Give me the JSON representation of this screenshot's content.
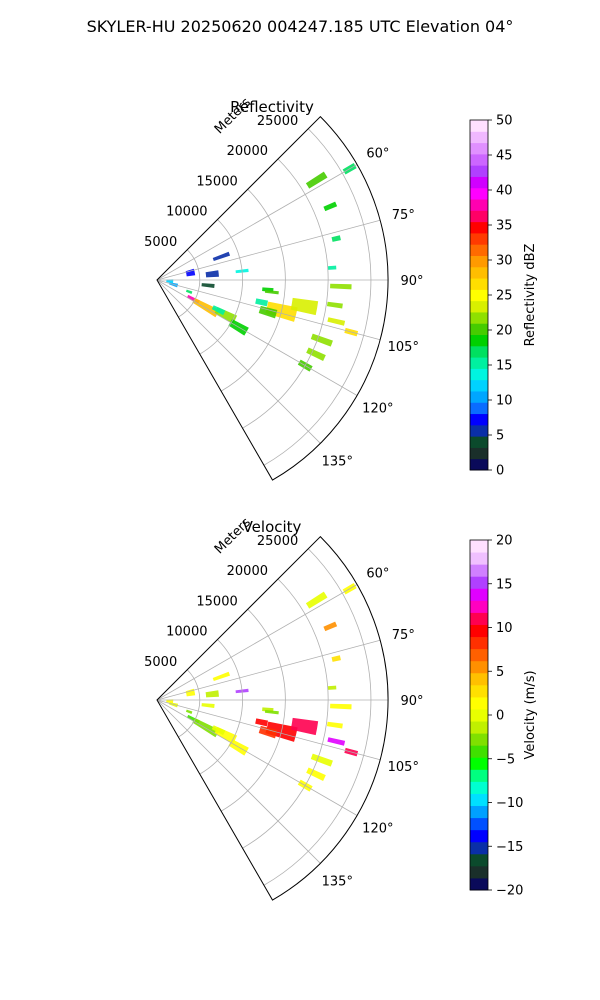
{
  "figure": {
    "suptitle": "SKYLER-HU  20250620  004247.185 UTC Elevation 04°"
  },
  "chart_data": [
    {
      "type": "heatmap",
      "title": "Reflectivity",
      "radial_axis_label": "Meters",
      "radial_ticks": [
        5000,
        10000,
        15000,
        20000,
        25000
      ],
      "radial_tick_labels": [
        "5000",
        "10000",
        "15000",
        "20000",
        "25000"
      ],
      "radial_range": [
        0,
        27000
      ],
      "azimuth_range_deg": [
        45,
        150
      ],
      "azimuth_ticks": [
        60,
        75,
        90,
        105,
        120,
        135
      ],
      "azimuth_tick_labels": [
        "60°",
        "75°",
        "90°",
        "105°",
        "120°",
        "135°"
      ],
      "grid": true,
      "colorbar": {
        "label": "Reflectivity dBZ",
        "range": [
          0,
          50
        ],
        "ticks": [
          0,
          5,
          10,
          15,
          20,
          25,
          30,
          35,
          40,
          45,
          50
        ],
        "tick_labels": [
          "0",
          "5",
          "10",
          "15",
          "20",
          "25",
          "30",
          "35",
          "40",
          "45",
          "50"
        ],
        "colormap": "pyart_NWSRef"
      },
      "echoes": [
        {
          "az": 118,
          "r": 4800,
          "w": 5,
          "l": 1500,
          "v": 38
        },
        {
          "az": 119,
          "r": 6500,
          "w": 7,
          "l": 3200,
          "v": 28
        },
        {
          "az": 117,
          "r": 9000,
          "w": 6,
          "l": 2500,
          "v": 22
        },
        {
          "az": 120,
          "r": 11000,
          "w": 5,
          "l": 2200,
          "v": 19
        },
        {
          "az": 116,
          "r": 8000,
          "w": 4,
          "l": 1500,
          "v": 16
        },
        {
          "az": 104,
          "r": 15000,
          "w": 6,
          "l": 3500,
          "v": 27
        },
        {
          "az": 100,
          "r": 17500,
          "w": 5,
          "l": 3000,
          "v": 24
        },
        {
          "az": 106,
          "r": 13500,
          "w": 4,
          "l": 2000,
          "v": 20
        },
        {
          "az": 102,
          "r": 12500,
          "w": 3,
          "l": 1400,
          "v": 15
        },
        {
          "az": 95,
          "r": 13000,
          "w": 2,
          "l": 1300,
          "v": 18
        },
        {
          "az": 84,
          "r": 10000,
          "w": 2,
          "l": 1500,
          "v": 13
        },
        {
          "az": 98,
          "r": 21000,
          "w": 1.5,
          "l": 1800,
          "v": 22
        },
        {
          "az": 103,
          "r": 21500,
          "w": 1.5,
          "l": 2000,
          "v": 24
        },
        {
          "az": 105,
          "r": 23500,
          "w": 1.5,
          "l": 1500,
          "v": 26
        },
        {
          "az": 110,
          "r": 20500,
          "w": 2,
          "l": 2500,
          "v": 21
        },
        {
          "az": 115,
          "r": 20500,
          "w": 2,
          "l": 2200,
          "v": 21
        },
        {
          "az": 120,
          "r": 20000,
          "w": 2,
          "l": 1600,
          "v": 20
        },
        {
          "az": 92,
          "r": 21500,
          "w": 1.5,
          "l": 2500,
          "v": 21
        },
        {
          "az": 96,
          "r": 13500,
          "w": 1.5,
          "l": 1600,
          "v": 20
        },
        {
          "az": 58,
          "r": 22000,
          "w": 2,
          "l": 2500,
          "v": 20
        },
        {
          "az": 67,
          "r": 22000,
          "w": 1.5,
          "l": 1500,
          "v": 18
        },
        {
          "az": 77,
          "r": 21500,
          "w": 1.5,
          "l": 1000,
          "v": 17
        },
        {
          "az": 86,
          "r": 20500,
          "w": 1.2,
          "l": 1000,
          "v": 16
        },
        {
          "az": 60,
          "r": 26000,
          "w": 1.5,
          "l": 1500,
          "v": 17
        },
        {
          "az": 78,
          "r": 4000,
          "w": 10,
          "l": 1000,
          "v": 8
        },
        {
          "az": 84,
          "r": 6500,
          "w": 6,
          "l": 1500,
          "v": 5
        },
        {
          "az": 70,
          "r": 8000,
          "w": 3,
          "l": 2000,
          "v": 6
        },
        {
          "az": 96,
          "r": 6000,
          "w": 4,
          "l": 1500,
          "v": 4
        },
        {
          "az": 105,
          "r": 2000,
          "w": 10,
          "l": 1000,
          "v": 11
        },
        {
          "az": 95,
          "r": 1500,
          "w": 14,
          "l": 800,
          "v": 12
        },
        {
          "az": 110,
          "r": 4000,
          "w": 4,
          "l": 700,
          "v": 17
        }
      ]
    },
    {
      "type": "heatmap",
      "title": "Velocity",
      "radial_axis_label": "Meters",
      "radial_ticks": [
        5000,
        10000,
        15000,
        20000,
        25000
      ],
      "radial_tick_labels": [
        "5000",
        "10000",
        "15000",
        "20000",
        "25000"
      ],
      "radial_range": [
        0,
        27000
      ],
      "azimuth_range_deg": [
        45,
        150
      ],
      "azimuth_ticks": [
        60,
        75,
        90,
        105,
        120,
        135
      ],
      "azimuth_tick_labels": [
        "60°",
        "75°",
        "90°",
        "105°",
        "120°",
        "135°"
      ],
      "grid": true,
      "colorbar": {
        "label": "Velocity (m/s)",
        "range": [
          -20,
          20
        ],
        "ticks": [
          -20,
          -15,
          -10,
          -5,
          0,
          5,
          10,
          15,
          20
        ],
        "tick_labels": [
          "−20",
          "−15",
          "−10",
          "−5",
          "0",
          "5",
          "10",
          "15",
          "20"
        ],
        "colormap": "pyart_NWSVel"
      },
      "echoes": [
        {
          "az": 118,
          "r": 4800,
          "w": 5,
          "l": 1500,
          "v": -4
        },
        {
          "az": 119,
          "r": 6500,
          "w": 7,
          "l": 3200,
          "v": -3
        },
        {
          "az": 117,
          "r": 9000,
          "w": 6,
          "l": 2500,
          "v": 1
        },
        {
          "az": 120,
          "r": 11000,
          "w": 5,
          "l": 2200,
          "v": 2
        },
        {
          "az": 116,
          "r": 8000,
          "w": 4,
          "l": 1500,
          "v": 0
        },
        {
          "az": 104,
          "r": 15000,
          "w": 6,
          "l": 3500,
          "v": 10
        },
        {
          "az": 100,
          "r": 17500,
          "w": 5,
          "l": 3000,
          "v": 11
        },
        {
          "az": 106,
          "r": 13500,
          "w": 4,
          "l": 2000,
          "v": 8
        },
        {
          "az": 102,
          "r": 12500,
          "w": 3,
          "l": 1400,
          "v": 9
        },
        {
          "az": 95,
          "r": 13000,
          "w": 2,
          "l": 1300,
          "v": -2
        },
        {
          "az": 84,
          "r": 10000,
          "w": 2,
          "l": 1500,
          "v": 15
        },
        {
          "az": 98,
          "r": 21000,
          "w": 1.5,
          "l": 1800,
          "v": 1
        },
        {
          "az": 103,
          "r": 21500,
          "w": 1.5,
          "l": 2000,
          "v": 14
        },
        {
          "az": 105,
          "r": 23500,
          "w": 1.5,
          "l": 1500,
          "v": 11
        },
        {
          "az": 110,
          "r": 20500,
          "w": 2,
          "l": 2500,
          "v": 0
        },
        {
          "az": 115,
          "r": 20500,
          "w": 2,
          "l": 2200,
          "v": 1
        },
        {
          "az": 120,
          "r": 20000,
          "w": 2,
          "l": 1600,
          "v": 2
        },
        {
          "az": 92,
          "r": 21500,
          "w": 1.5,
          "l": 2500,
          "v": 1
        },
        {
          "az": 96,
          "r": 13500,
          "w": 1.5,
          "l": 1600,
          "v": -3
        },
        {
          "az": 58,
          "r": 22000,
          "w": 2,
          "l": 2500,
          "v": 0
        },
        {
          "az": 67,
          "r": 22000,
          "w": 1.5,
          "l": 1500,
          "v": 6
        },
        {
          "az": 77,
          "r": 21500,
          "w": 1.5,
          "l": 1000,
          "v": 3
        },
        {
          "az": 86,
          "r": 20500,
          "w": 1.2,
          "l": 1000,
          "v": -2
        },
        {
          "az": 60,
          "r": 26000,
          "w": 1.5,
          "l": 1500,
          "v": 1
        },
        {
          "az": 78,
          "r": 4000,
          "w": 10,
          "l": 1000,
          "v": 1
        },
        {
          "az": 84,
          "r": 6500,
          "w": 6,
          "l": 1500,
          "v": -1
        },
        {
          "az": 70,
          "r": 8000,
          "w": 3,
          "l": 2000,
          "v": 1
        },
        {
          "az": 96,
          "r": 6000,
          "w": 4,
          "l": 1500,
          "v": 0
        },
        {
          "az": 105,
          "r": 2000,
          "w": 10,
          "l": 1000,
          "v": 0
        },
        {
          "az": 95,
          "r": 1500,
          "w": 14,
          "l": 800,
          "v": 1
        },
        {
          "az": 110,
          "r": 4000,
          "w": 4,
          "l": 700,
          "v": -3
        }
      ]
    }
  ]
}
